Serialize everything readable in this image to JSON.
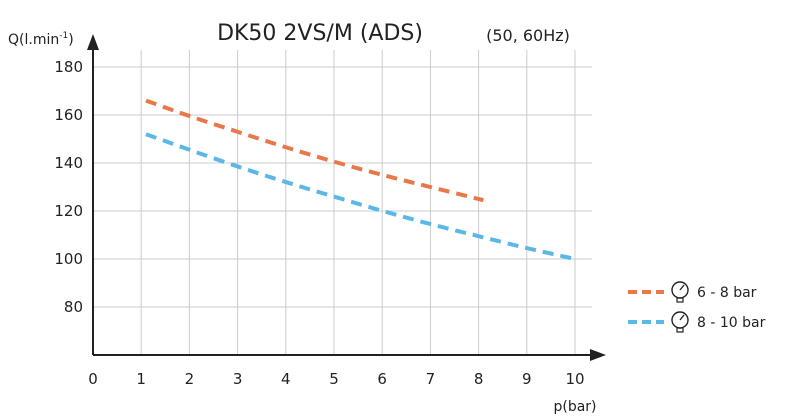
{
  "chart_data": {
    "type": "line",
    "title": "DK50 2VS/M (ADS)",
    "subtitle": "(50, 60Hz)",
    "xlabel": "p(bar)",
    "ylabel": "Q(l.min",
    "ylabel_sup": "-1",
    "ylabel_close": ")",
    "xlim": [
      0,
      10
    ],
    "ylim": [
      60,
      180
    ],
    "xticks": [
      0,
      1,
      2,
      3,
      4,
      5,
      6,
      7,
      8,
      9,
      10
    ],
    "yticks": [
      80,
      100,
      120,
      140,
      160,
      180
    ],
    "grid": true,
    "legend_position": "right",
    "series": [
      {
        "name": "6 - 8 bar",
        "color": "#E8784A",
        "icon": "pressure-gauge-icon",
        "x": [
          1.1,
          2,
          3,
          4,
          5,
          6,
          7,
          8.1
        ],
        "y": [
          166,
          159.5,
          153,
          146.5,
          140.5,
          135,
          130,
          124.5
        ]
      },
      {
        "name": "8 - 10 bar",
        "color": "#5BB8E6",
        "icon": "pressure-gauge-icon",
        "x": [
          1.1,
          2,
          3,
          4,
          5,
          6,
          7,
          8,
          9,
          10
        ],
        "y": [
          152,
          145.5,
          138.5,
          132,
          126,
          120,
          114.5,
          109.5,
          104.5,
          100
        ]
      }
    ]
  }
}
